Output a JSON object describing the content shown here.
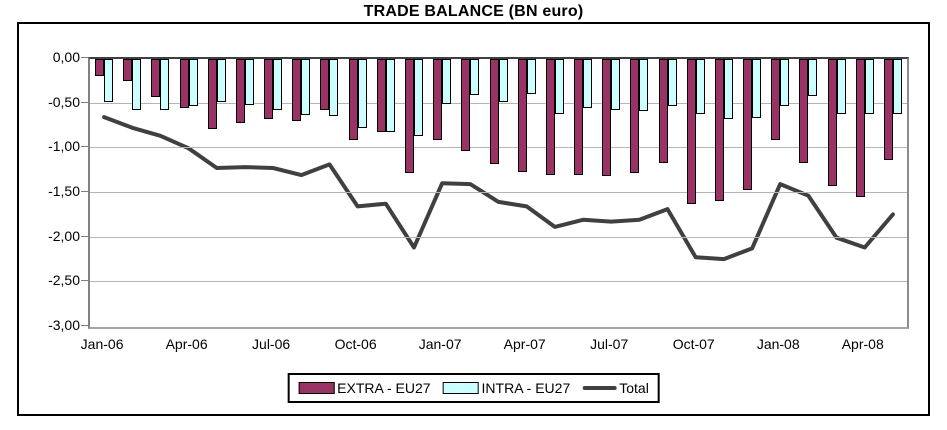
{
  "title": "TRADE BALANCE (BN euro)",
  "colors": {
    "extra": "#993366",
    "intra": "#CCFFFF",
    "total": "#404040",
    "gridline": "#b4b4b4",
    "axis": "#808080"
  },
  "legend": {
    "extra_label": "EXTRA - EU27",
    "intra_label": "INTRA - EU27",
    "total_label": "Total"
  },
  "chart_data": {
    "type": "bar",
    "subtype": "grouped-bars-with-line-overlay",
    "title": "TRADE BALANCE (BN euro)",
    "xlabel": "",
    "ylabel": "",
    "ylim": [
      -3.0,
      0.0
    ],
    "grid": true,
    "legend_position": "bottom",
    "yticks": [
      "0,00",
      "-0,50",
      "-1,00",
      "-1,50",
      "-2,00",
      "-2,50",
      "-3,00"
    ],
    "ytick_values": [
      0,
      -0.5,
      -1.0,
      -1.5,
      -2.0,
      -2.5,
      -3.0
    ],
    "xtick_every": 3,
    "xtick_labels": [
      "Jan-06",
      "Apr-06",
      "Jul-06",
      "Oct-06",
      "Jan-07",
      "Apr-07",
      "Jul-07",
      "Oct-07",
      "Jan-08",
      "Apr-08"
    ],
    "categories": [
      "Jan-06",
      "Feb-06",
      "Mar-06",
      "Apr-06",
      "May-06",
      "Jun-06",
      "Jul-06",
      "Aug-06",
      "Sep-06",
      "Oct-06",
      "Nov-06",
      "Dec-06",
      "Jan-07",
      "Feb-07",
      "Mar-07",
      "Apr-07",
      "May-07",
      "Jun-07",
      "Jul-07",
      "Aug-07",
      "Sep-07",
      "Oct-07",
      "Nov-07",
      "Dec-07",
      "Jan-08",
      "Feb-08",
      "Mar-08",
      "Apr-08",
      "May-08"
    ],
    "series": [
      {
        "name": "EXTRA - EU27",
        "type": "bar",
        "color": "#993366",
        "values": [
          -0.18,
          -0.23,
          -0.41,
          -0.54,
          -0.77,
          -0.71,
          -0.66,
          -0.68,
          -0.56,
          -0.9,
          -0.81,
          -1.26,
          -0.9,
          -1.02,
          -1.16,
          -1.25,
          -1.29,
          -1.29,
          -1.3,
          -1.26,
          -1.15,
          -1.61,
          -1.58,
          -1.46,
          -0.9,
          -1.15,
          -1.41,
          -1.53,
          -1.12
        ]
      },
      {
        "name": "INTRA - EU27",
        "type": "bar",
        "color": "#CCFFFF",
        "values": [
          -0.47,
          -0.56,
          -0.56,
          -0.52,
          -0.47,
          -0.5,
          -0.56,
          -0.62,
          -0.63,
          -0.76,
          -0.81,
          -0.85,
          -0.49,
          -0.39,
          -0.47,
          -0.38,
          -0.6,
          -0.54,
          -0.56,
          -0.57,
          -0.52,
          -0.61,
          -0.66,
          -0.65,
          -0.51,
          -0.4,
          -0.6,
          -0.61,
          -0.61
        ]
      },
      {
        "name": "Total",
        "type": "line",
        "color": "#404040",
        "values": [
          -0.65,
          -0.77,
          -0.86,
          -1.0,
          -1.22,
          -1.21,
          -1.22,
          -1.3,
          -1.18,
          -1.65,
          -1.62,
          -2.11,
          -1.39,
          -1.4,
          -1.6,
          -1.65,
          -1.88,
          -1.8,
          -1.82,
          -1.8,
          -1.68,
          -2.22,
          -2.24,
          -2.12,
          -1.4,
          -1.53,
          -2.0,
          -2.11,
          -1.74
        ]
      }
    ]
  }
}
